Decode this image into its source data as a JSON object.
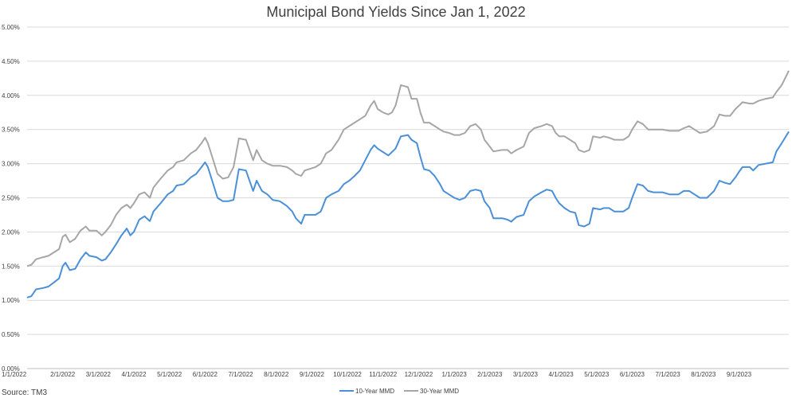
{
  "chart_data": {
    "type": "line",
    "title": "Municipal Bond Yields Since Jan 1, 2022",
    "source": "Source: TM3",
    "xlabel": "",
    "ylabel": "",
    "ylim": [
      0,
      5
    ],
    "yticks": [
      "0.00%",
      "0.50%",
      "1.00%",
      "1.50%",
      "2.00%",
      "2.50%",
      "3.00%",
      "3.50%",
      "4.00%",
      "4.50%",
      "5.00%"
    ],
    "xlim": [
      0,
      21.4
    ],
    "xticks": [
      "1/1/2022",
      "2/1/2022",
      "3/1/2022",
      "4/1/2022",
      "5/1/2022",
      "6/1/2022",
      "7/1/2022",
      "8/1/2022",
      "9/1/2022",
      "10/1/2022",
      "11/1/2022",
      "12/1/2022",
      "1/1/2023",
      "2/1/2023",
      "3/1/2023",
      "4/1/2023",
      "5/1/2023",
      "6/1/2023",
      "7/1/2023",
      "8/1/2023",
      "9/1/2023"
    ],
    "grid": true,
    "legend_position": "bottom",
    "x_units": "months since 1/1/2022",
    "series": [
      {
        "name": "10-Year MMD",
        "color": "#4a90d9",
        "points": [
          [
            0,
            1.04
          ],
          [
            0.12,
            1.06
          ],
          [
            0.25,
            1.16
          ],
          [
            0.45,
            1.18
          ],
          [
            0.6,
            1.2
          ],
          [
            0.75,
            1.26
          ],
          [
            0.9,
            1.32
          ],
          [
            1.0,
            1.5
          ],
          [
            1.08,
            1.55
          ],
          [
            1.2,
            1.44
          ],
          [
            1.35,
            1.46
          ],
          [
            1.5,
            1.6
          ],
          [
            1.65,
            1.7
          ],
          [
            1.75,
            1.65
          ],
          [
            1.95,
            1.63
          ],
          [
            2.1,
            1.58
          ],
          [
            2.2,
            1.6
          ],
          [
            2.35,
            1.7
          ],
          [
            2.5,
            1.82
          ],
          [
            2.65,
            1.95
          ],
          [
            2.8,
            2.05
          ],
          [
            2.9,
            1.95
          ],
          [
            3.0,
            2.0
          ],
          [
            3.15,
            2.18
          ],
          [
            3.3,
            2.23
          ],
          [
            3.45,
            2.16
          ],
          [
            3.55,
            2.3
          ],
          [
            3.75,
            2.42
          ],
          [
            3.95,
            2.55
          ],
          [
            4.1,
            2.6
          ],
          [
            4.2,
            2.68
          ],
          [
            4.4,
            2.7
          ],
          [
            4.6,
            2.8
          ],
          [
            4.75,
            2.85
          ],
          [
            4.9,
            2.95
          ],
          [
            5.0,
            3.02
          ],
          [
            5.08,
            2.95
          ],
          [
            5.2,
            2.75
          ],
          [
            5.35,
            2.5
          ],
          [
            5.5,
            2.45
          ],
          [
            5.65,
            2.45
          ],
          [
            5.8,
            2.47
          ],
          [
            5.95,
            2.92
          ],
          [
            6.15,
            2.9
          ],
          [
            6.35,
            2.6
          ],
          [
            6.45,
            2.75
          ],
          [
            6.6,
            2.6
          ],
          [
            6.75,
            2.55
          ],
          [
            6.9,
            2.47
          ],
          [
            7.1,
            2.45
          ],
          [
            7.3,
            2.38
          ],
          [
            7.45,
            2.3
          ],
          [
            7.55,
            2.2
          ],
          [
            7.7,
            2.12
          ],
          [
            7.8,
            2.25
          ],
          [
            8.1,
            2.25
          ],
          [
            8.25,
            2.3
          ],
          [
            8.4,
            2.5
          ],
          [
            8.55,
            2.55
          ],
          [
            8.75,
            2.6
          ],
          [
            8.9,
            2.7
          ],
          [
            9.05,
            2.75
          ],
          [
            9.2,
            2.82
          ],
          [
            9.35,
            2.9
          ],
          [
            9.5,
            3.05
          ],
          [
            9.65,
            3.2
          ],
          [
            9.75,
            3.27
          ],
          [
            9.85,
            3.22
          ],
          [
            10.0,
            3.17
          ],
          [
            10.15,
            3.12
          ],
          [
            10.25,
            3.17
          ],
          [
            10.35,
            3.22
          ],
          [
            10.5,
            3.4
          ],
          [
            10.7,
            3.42
          ],
          [
            10.8,
            3.35
          ],
          [
            10.95,
            3.3
          ],
          [
            11.05,
            3.1
          ],
          [
            11.15,
            2.92
          ],
          [
            11.3,
            2.9
          ],
          [
            11.45,
            2.82
          ],
          [
            11.6,
            2.7
          ],
          [
            11.7,
            2.6
          ],
          [
            11.85,
            2.55
          ],
          [
            12.0,
            2.5
          ],
          [
            12.15,
            2.47
          ],
          [
            12.3,
            2.5
          ],
          [
            12.45,
            2.6
          ],
          [
            12.6,
            2.62
          ],
          [
            12.75,
            2.6
          ],
          [
            12.85,
            2.45
          ],
          [
            13.0,
            2.35
          ],
          [
            13.1,
            2.2
          ],
          [
            13.35,
            2.2
          ],
          [
            13.5,
            2.18
          ],
          [
            13.6,
            2.15
          ],
          [
            13.75,
            2.22
          ],
          [
            13.95,
            2.25
          ],
          [
            14.1,
            2.45
          ],
          [
            14.25,
            2.52
          ],
          [
            14.45,
            2.58
          ],
          [
            14.6,
            2.62
          ],
          [
            14.75,
            2.6
          ],
          [
            14.85,
            2.5
          ],
          [
            14.95,
            2.42
          ],
          [
            15.1,
            2.35
          ],
          [
            15.25,
            2.3
          ],
          [
            15.4,
            2.28
          ],
          [
            15.5,
            2.1
          ],
          [
            15.65,
            2.08
          ],
          [
            15.8,
            2.12
          ],
          [
            15.9,
            2.35
          ],
          [
            16.1,
            2.33
          ],
          [
            16.2,
            2.35
          ],
          [
            16.35,
            2.35
          ],
          [
            16.5,
            2.3
          ],
          [
            16.75,
            2.3
          ],
          [
            16.9,
            2.35
          ],
          [
            17.0,
            2.5
          ],
          [
            17.15,
            2.7
          ],
          [
            17.3,
            2.68
          ],
          [
            17.45,
            2.6
          ],
          [
            17.6,
            2.58
          ],
          [
            17.85,
            2.58
          ],
          [
            18.05,
            2.55
          ],
          [
            18.3,
            2.55
          ],
          [
            18.45,
            2.6
          ],
          [
            18.6,
            2.6
          ],
          [
            18.75,
            2.55
          ],
          [
            18.9,
            2.5
          ],
          [
            19.1,
            2.5
          ],
          [
            19.3,
            2.6
          ],
          [
            19.45,
            2.75
          ],
          [
            19.6,
            2.72
          ],
          [
            19.75,
            2.7
          ],
          [
            19.9,
            2.8
          ],
          [
            20.0,
            2.88
          ],
          [
            20.1,
            2.95
          ],
          [
            20.3,
            2.95
          ],
          [
            20.4,
            2.9
          ],
          [
            20.55,
            2.98
          ],
          [
            20.75,
            3.0
          ],
          [
            20.95,
            3.02
          ],
          [
            21.05,
            3.18
          ],
          [
            21.2,
            3.3
          ],
          [
            21.4,
            3.47
          ]
        ]
      },
      {
        "name": "30-Year MMD",
        "color": "#a6a6a6",
        "points": [
          [
            0,
            1.5
          ],
          [
            0.12,
            1.52
          ],
          [
            0.25,
            1.6
          ],
          [
            0.45,
            1.63
          ],
          [
            0.6,
            1.65
          ],
          [
            0.75,
            1.7
          ],
          [
            0.9,
            1.75
          ],
          [
            1.0,
            1.93
          ],
          [
            1.08,
            1.96
          ],
          [
            1.2,
            1.85
          ],
          [
            1.35,
            1.9
          ],
          [
            1.5,
            2.02
          ],
          [
            1.65,
            2.08
          ],
          [
            1.75,
            2.02
          ],
          [
            1.95,
            2.02
          ],
          [
            2.1,
            1.95
          ],
          [
            2.2,
            2.0
          ],
          [
            2.35,
            2.1
          ],
          [
            2.5,
            2.25
          ],
          [
            2.65,
            2.35
          ],
          [
            2.8,
            2.4
          ],
          [
            2.9,
            2.35
          ],
          [
            3.0,
            2.42
          ],
          [
            3.15,
            2.55
          ],
          [
            3.3,
            2.58
          ],
          [
            3.45,
            2.5
          ],
          [
            3.55,
            2.65
          ],
          [
            3.75,
            2.78
          ],
          [
            3.95,
            2.9
          ],
          [
            4.1,
            2.95
          ],
          [
            4.2,
            3.02
          ],
          [
            4.4,
            3.05
          ],
          [
            4.6,
            3.15
          ],
          [
            4.75,
            3.2
          ],
          [
            4.9,
            3.3
          ],
          [
            5.0,
            3.38
          ],
          [
            5.08,
            3.3
          ],
          [
            5.2,
            3.1
          ],
          [
            5.35,
            2.85
          ],
          [
            5.5,
            2.78
          ],
          [
            5.65,
            2.8
          ],
          [
            5.8,
            2.95
          ],
          [
            5.95,
            3.37
          ],
          [
            6.15,
            3.35
          ],
          [
            6.35,
            3.05
          ],
          [
            6.45,
            3.2
          ],
          [
            6.6,
            3.05
          ],
          [
            6.75,
            3.0
          ],
          [
            6.9,
            2.97
          ],
          [
            7.1,
            2.97
          ],
          [
            7.3,
            2.95
          ],
          [
            7.45,
            2.9
          ],
          [
            7.55,
            2.85
          ],
          [
            7.7,
            2.82
          ],
          [
            7.8,
            2.9
          ],
          [
            8.1,
            2.95
          ],
          [
            8.25,
            3.0
          ],
          [
            8.4,
            3.15
          ],
          [
            8.55,
            3.2
          ],
          [
            8.75,
            3.35
          ],
          [
            8.9,
            3.5
          ],
          [
            9.05,
            3.55
          ],
          [
            9.2,
            3.6
          ],
          [
            9.35,
            3.65
          ],
          [
            9.5,
            3.7
          ],
          [
            9.65,
            3.85
          ],
          [
            9.75,
            3.92
          ],
          [
            9.85,
            3.8
          ],
          [
            10.0,
            3.75
          ],
          [
            10.15,
            3.72
          ],
          [
            10.25,
            3.75
          ],
          [
            10.35,
            3.85
          ],
          [
            10.5,
            4.15
          ],
          [
            10.7,
            4.12
          ],
          [
            10.8,
            3.95
          ],
          [
            10.95,
            3.95
          ],
          [
            11.05,
            3.75
          ],
          [
            11.15,
            3.6
          ],
          [
            11.3,
            3.6
          ],
          [
            11.45,
            3.55
          ],
          [
            11.6,
            3.5
          ],
          [
            11.7,
            3.47
          ],
          [
            11.85,
            3.45
          ],
          [
            12.0,
            3.42
          ],
          [
            12.15,
            3.42
          ],
          [
            12.3,
            3.45
          ],
          [
            12.45,
            3.55
          ],
          [
            12.6,
            3.58
          ],
          [
            12.75,
            3.5
          ],
          [
            12.85,
            3.35
          ],
          [
            13.0,
            3.25
          ],
          [
            13.1,
            3.18
          ],
          [
            13.35,
            3.2
          ],
          [
            13.5,
            3.2
          ],
          [
            13.6,
            3.15
          ],
          [
            13.75,
            3.2
          ],
          [
            13.95,
            3.25
          ],
          [
            14.1,
            3.45
          ],
          [
            14.25,
            3.52
          ],
          [
            14.45,
            3.55
          ],
          [
            14.6,
            3.58
          ],
          [
            14.75,
            3.55
          ],
          [
            14.85,
            3.45
          ],
          [
            14.95,
            3.4
          ],
          [
            15.1,
            3.4
          ],
          [
            15.25,
            3.35
          ],
          [
            15.4,
            3.3
          ],
          [
            15.5,
            3.2
          ],
          [
            15.65,
            3.17
          ],
          [
            15.8,
            3.2
          ],
          [
            15.9,
            3.4
          ],
          [
            16.1,
            3.38
          ],
          [
            16.2,
            3.4
          ],
          [
            16.35,
            3.38
          ],
          [
            16.5,
            3.35
          ],
          [
            16.75,
            3.35
          ],
          [
            16.9,
            3.4
          ],
          [
            17.0,
            3.5
          ],
          [
            17.15,
            3.62
          ],
          [
            17.3,
            3.58
          ],
          [
            17.45,
            3.5
          ],
          [
            17.6,
            3.5
          ],
          [
            17.85,
            3.5
          ],
          [
            18.05,
            3.48
          ],
          [
            18.3,
            3.48
          ],
          [
            18.45,
            3.52
          ],
          [
            18.6,
            3.55
          ],
          [
            18.75,
            3.5
          ],
          [
            18.9,
            3.45
          ],
          [
            19.1,
            3.47
          ],
          [
            19.3,
            3.55
          ],
          [
            19.45,
            3.72
          ],
          [
            19.6,
            3.7
          ],
          [
            19.75,
            3.7
          ],
          [
            19.9,
            3.8
          ],
          [
            20.0,
            3.85
          ],
          [
            20.1,
            3.9
          ],
          [
            20.3,
            3.88
          ],
          [
            20.4,
            3.88
          ],
          [
            20.55,
            3.92
          ],
          [
            20.75,
            3.95
          ],
          [
            20.95,
            3.97
          ],
          [
            21.05,
            4.05
          ],
          [
            21.2,
            4.15
          ],
          [
            21.4,
            4.36
          ]
        ]
      }
    ]
  }
}
